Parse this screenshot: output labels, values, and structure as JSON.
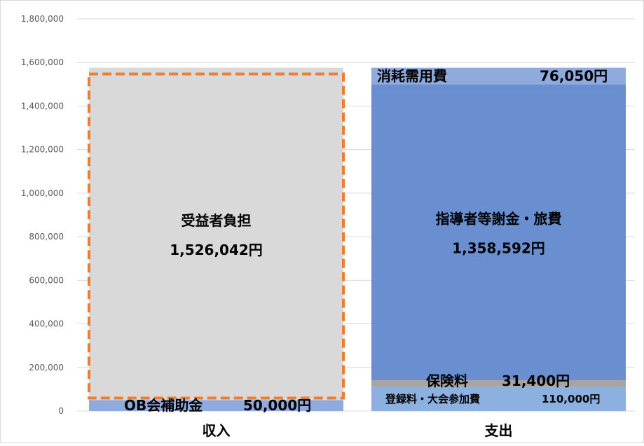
{
  "chart_data": {
    "type": "bar",
    "stacked": true,
    "ylim": [
      0,
      1800000
    ],
    "yticks": [
      0,
      200000,
      400000,
      600000,
      800000,
      1000000,
      1200000,
      1400000,
      1600000,
      1800000
    ],
    "ytick_labels": [
      "0",
      "200,000",
      "400,000",
      "600,000",
      "800,000",
      "1,000,000",
      "1,200,000",
      "1,400,000",
      "1,600,000",
      "1,800,000"
    ],
    "grid": true,
    "categories": [
      "収入",
      "支出"
    ],
    "bars": [
      {
        "category": "収入",
        "segments": [
          {
            "label": "OB会補助金",
            "value": 50000,
            "value_label": "50,000円",
            "color": "#8faadc",
            "label_style": "inline"
          },
          {
            "label": "受益者負担",
            "value": 1526042,
            "value_label": "1,526,042円",
            "color": "#d9d9d9",
            "label_style": "center",
            "outline_color": "#ed7d31",
            "outline": "dashed"
          }
        ]
      },
      {
        "category": "支出",
        "segments": [
          {
            "label": "登録料・大会参加費",
            "value": 110000,
            "value_label": "110,000円",
            "color": "#8cb0e0",
            "label_style": "inline-small"
          },
          {
            "label": "保険料",
            "value": 31400,
            "value_label": "31,400円",
            "color": "#a5a5a5",
            "label_style": "inline-above"
          },
          {
            "label": "指導者等謝金・旅費",
            "value": 1358592,
            "value_label": "1,358,592円",
            "color": "#6a8fd0",
            "label_style": "center"
          },
          {
            "label": "消耗需用費",
            "value": 76050,
            "value_label": "76,050円",
            "color": "#8faadc",
            "label_style": "inline"
          }
        ]
      }
    ]
  }
}
